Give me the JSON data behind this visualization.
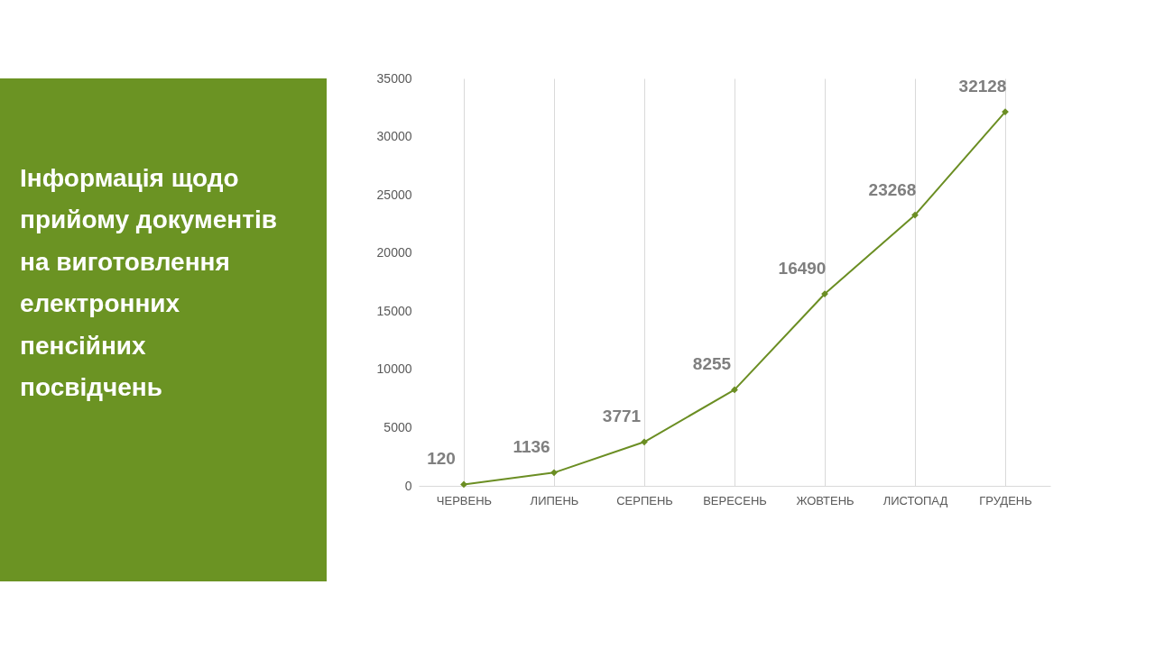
{
  "chart_data": {
    "type": "line",
    "title": "Інформація щодо прийому документів на виготовлення електронних пенсійних посвідчень",
    "categories": [
      "ЧЕРВЕНЬ",
      "ЛИПЕНЬ",
      "СЕРПЕНЬ",
      "ВЕРЕСЕНЬ",
      "ЖОВТЕНЬ",
      "ЛИСТОПАД",
      "ГРУДЕНЬ"
    ],
    "series": [
      {
        "color": "#6b8e23",
        "values": [
          120,
          1136,
          3771,
          8255,
          16490,
          23268,
          32128
        ]
      }
    ],
    "ylim": [
      0,
      35000
    ],
    "yticks": [
      0,
      5000,
      10000,
      15000,
      20000,
      25000,
      30000,
      35000
    ],
    "grid": "x",
    "marker": "diamond",
    "line_style": "solid",
    "data_labels": true
  }
}
